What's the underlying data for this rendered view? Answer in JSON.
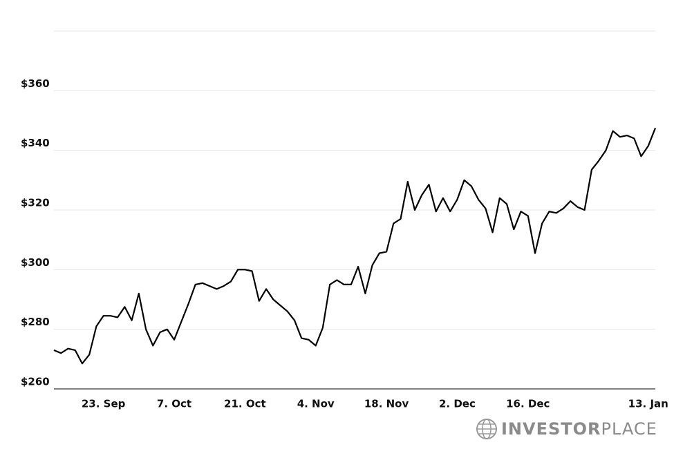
{
  "chart_data": {
    "type": "line",
    "categories": [
      null,
      null,
      null,
      null,
      null,
      null,
      null,
      "23. Sep",
      null,
      null,
      null,
      null,
      null,
      null,
      null,
      null,
      null,
      "7. Oct",
      null,
      null,
      null,
      null,
      null,
      null,
      null,
      null,
      null,
      "21. Oct",
      null,
      null,
      null,
      null,
      null,
      null,
      null,
      null,
      null,
      "4. Nov",
      null,
      null,
      null,
      null,
      null,
      null,
      null,
      null,
      null,
      "18. Nov",
      null,
      null,
      null,
      null,
      null,
      null,
      null,
      null,
      null,
      "2. Dec",
      null,
      null,
      null,
      null,
      null,
      null,
      null,
      null,
      null,
      "16. Dec",
      null,
      null,
      null,
      null,
      null,
      null,
      null,
      null,
      null,
      null,
      null,
      null,
      null,
      null,
      null,
      null,
      "13. Jan",
      null
    ],
    "series": [
      {
        "color": "#000000",
        "values": [
          273,
          272,
          273.5,
          273,
          268.5,
          271.5,
          281,
          284.5,
          284.5,
          284,
          287.5,
          283,
          292,
          280,
          274.5,
          279,
          280,
          276.5,
          282.5,
          288.5,
          295,
          295.5,
          294.5,
          293.5,
          294.5,
          296,
          300,
          300,
          299.5,
          289.5,
          293.5,
          290,
          288,
          286,
          283,
          277,
          276.5,
          274.5,
          280.5,
          295,
          296.5,
          295,
          295,
          301,
          292,
          301.5,
          305.5,
          306,
          315.5,
          317,
          329.5,
          320,
          325,
          328.5,
          319.5,
          324,
          319.5,
          323.5,
          330,
          328,
          323.5,
          320.5,
          312.5,
          324,
          322,
          313.5,
          319.5,
          318,
          305.5,
          315.5,
          319.5,
          319,
          320.5,
          323,
          321,
          320,
          333.5,
          336.5,
          340,
          346.5,
          344.5,
          345,
          344,
          338,
          341.5,
          347.5
        ]
      }
    ],
    "ylim": [
      260,
      380
    ],
    "yticks": [
      {
        "value": 260,
        "label": "$260"
      },
      {
        "value": 280,
        "label": "$280"
      },
      {
        "value": 300,
        "label": "$300"
      },
      {
        "value": 320,
        "label": "$320"
      },
      {
        "value": 340,
        "label": "$340"
      },
      {
        "value": 360,
        "label": "$360"
      }
    ],
    "grid": true
  },
  "brand": {
    "bold": "INVESTOR",
    "light": "PLACE"
  }
}
